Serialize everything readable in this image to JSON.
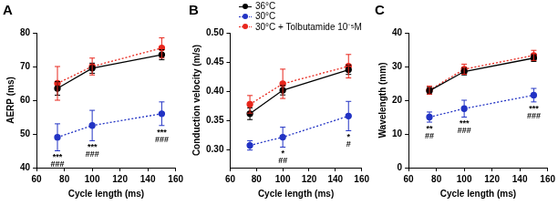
{
  "chart_data": [
    {
      "type": "line",
      "panel": "A",
      "x_label": "Cycle length (ms)",
      "y_label": "AERP (ms)",
      "x": [
        75,
        100,
        150
      ],
      "xlim": [
        60,
        160
      ],
      "xticks": [
        60,
        80,
        100,
        120,
        140,
        160
      ],
      "ylim": [
        40,
        80
      ],
      "yticks": [
        40,
        50,
        60,
        70,
        80
      ],
      "grid": false,
      "series": [
        {
          "name": "36°C",
          "color": "#000000",
          "marker": "circle",
          "line_style": "solid",
          "values": [
            63.5,
            69.5,
            73.5
          ],
          "errors": [
            2,
            1.5,
            1.5
          ]
        },
        {
          "name": "30°C",
          "color": "#2233c4",
          "marker": "circle",
          "line_style": "dotted",
          "values": [
            49,
            52.5,
            56
          ],
          "errors": [
            4,
            4.5,
            3.5
          ]
        },
        {
          "name": "30°C + Tolbutamide 10⁻⁵M",
          "color": "#e8261c",
          "marker": "circle",
          "line_style": "dotted",
          "values": [
            65,
            70,
            75.5
          ],
          "errors": [
            5,
            2.5,
            3
          ]
        }
      ],
      "annotations": [
        {
          "x": 75,
          "series": "30°C",
          "text": [
            "***",
            "###"
          ]
        },
        {
          "x": 100,
          "series": "30°C",
          "text": [
            "***",
            "###"
          ]
        },
        {
          "x": 150,
          "series": "30°C",
          "text": [
            "***",
            "###"
          ]
        }
      ]
    },
    {
      "type": "line",
      "panel": "B",
      "x_label": "Cycle length (ms)",
      "y_label": "Conduction velocity (m/s)",
      "x": [
        75,
        100,
        150
      ],
      "xlim": [
        60,
        160
      ],
      "xticks": [
        60,
        80,
        100,
        120,
        140,
        160
      ],
      "ylim": [
        0.27,
        0.5
      ],
      "yticks": [
        {
          "value": 0.3,
          "label": "0.30"
        },
        0.35,
        {
          "value": 0.4,
          "label": "0.40"
        },
        0.45,
        {
          "value": 0.5,
          "label": "0.50"
        }
      ],
      "grid": false,
      "legend": "top",
      "series": [
        {
          "name": "36°C",
          "color": "#000000",
          "marker": "circle",
          "line_style": "solid",
          "values": [
            0.362,
            0.402,
            0.437
          ],
          "errors": [
            0.01,
            0.008,
            0.008
          ]
        },
        {
          "name": "30°C",
          "color": "#2233c4",
          "marker": "circle",
          "line_style": "dotted",
          "values": [
            0.308,
            0.322,
            0.358
          ],
          "errors": [
            0.008,
            0.017,
            0.025
          ]
        },
        {
          "name": "30°C + Tolbutamide 10⁻⁵M",
          "color": "#e8261c",
          "marker": "circle",
          "line_style": "dotted",
          "values": [
            0.378,
            0.413,
            0.443
          ],
          "errors": [
            0.015,
            0.025,
            0.02
          ]
        }
      ],
      "annotations": [
        {
          "x": 100,
          "series": "30°C",
          "text": [
            "*",
            "##"
          ]
        },
        {
          "x": 150,
          "series": "30°C",
          "text": [
            "*",
            "#"
          ]
        }
      ]
    },
    {
      "type": "line",
      "panel": "C",
      "x_label": "Cycle length (ms)",
      "y_label": "Wavelength (mm)",
      "x": [
        75,
        100,
        150
      ],
      "xlim": [
        60,
        160
      ],
      "xticks": [
        60,
        80,
        100,
        120,
        140,
        160
      ],
      "ylim": [
        0,
        40
      ],
      "yticks": [
        0,
        10,
        20,
        30,
        40
      ],
      "grid": false,
      "series": [
        {
          "name": "36°C",
          "color": "#000000",
          "marker": "circle",
          "line_style": "solid",
          "values": [
            22.8,
            28.5,
            32.5
          ],
          "errors": [
            1,
            1,
            1
          ]
        },
        {
          "name": "30°C",
          "color": "#2233c4",
          "marker": "circle",
          "line_style": "dotted",
          "values": [
            15,
            17.5,
            21.5
          ],
          "errors": [
            1.5,
            2.5,
            2
          ]
        },
        {
          "name": "30°C + Tolbutamide 10⁻⁵M",
          "color": "#e8261c",
          "marker": "circle",
          "line_style": "dotted",
          "values": [
            23,
            29.2,
            33.3
          ],
          "errors": [
            1.2,
            1.5,
            1.5
          ]
        }
      ],
      "annotations": [
        {
          "x": 75,
          "series": "30°C",
          "text": [
            "**",
            "##"
          ]
        },
        {
          "x": 100,
          "series": "30°C",
          "text": [
            "***",
            "###"
          ]
        },
        {
          "x": 150,
          "series": "30°C",
          "text": [
            "***",
            "###"
          ]
        }
      ]
    }
  ]
}
